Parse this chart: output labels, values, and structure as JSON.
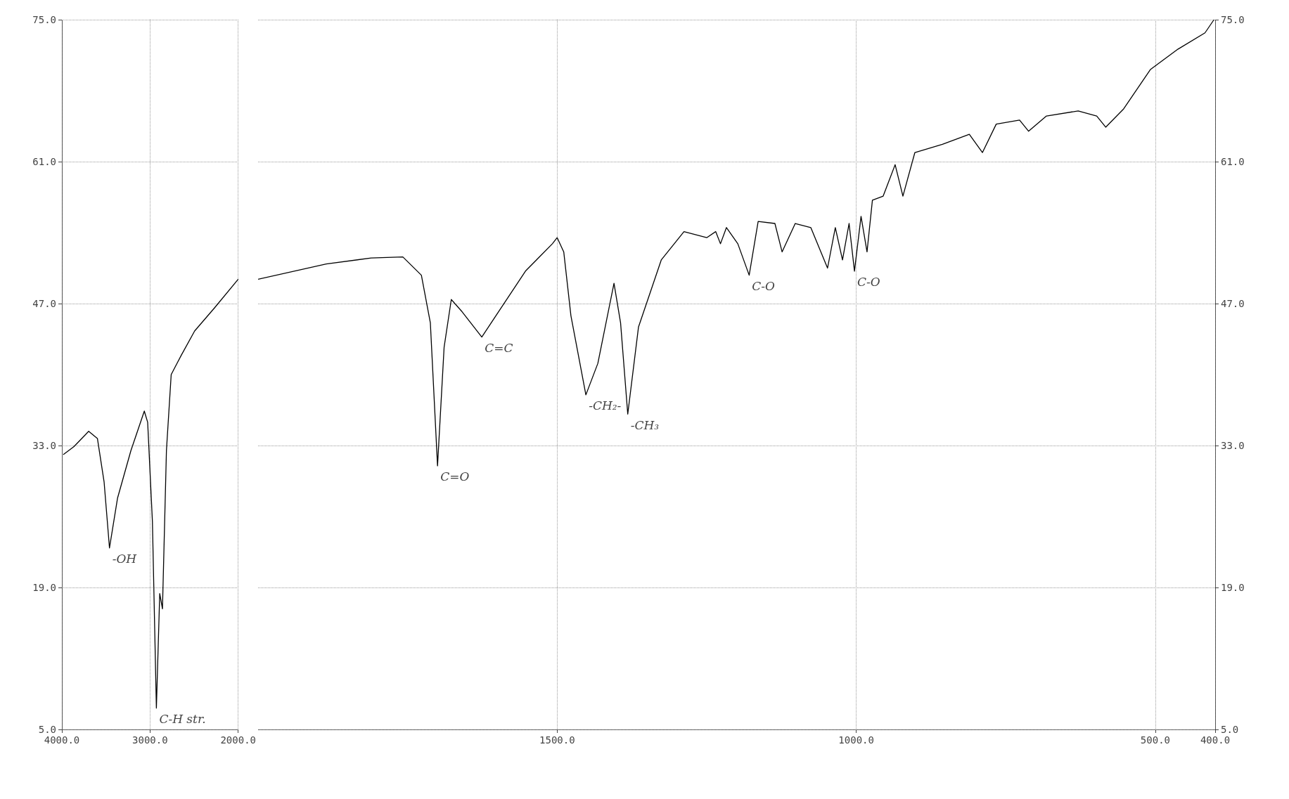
{
  "chart_data": [
    {
      "type": "line",
      "x": [
        3985,
        3863,
        3696,
        3597,
        3521,
        3460,
        3369,
        3217,
        3065,
        3027,
        2973,
        2928,
        2890,
        2859,
        2814,
        2760,
        2646,
        2494,
        2266,
        2000
      ],
      "series": [
        {
          "color": "#000000",
          "values": [
            32.1,
            32.9,
            34.4,
            33.7,
            29.4,
            22.9,
            27.8,
            32.5,
            36.4,
            35.3,
            25.5,
            7.1,
            18.4,
            16.9,
            32.5,
            40.0,
            41.9,
            44.3,
            46.6,
            49.4
          ]
        }
      ],
      "xlim": [
        4000,
        2000
      ],
      "xticks": [
        {
          "value": 4000,
          "label": "4000.0"
        },
        {
          "value": 3000,
          "label": "3000.0"
        },
        {
          "value": 2000,
          "label": "2000.0"
        }
      ],
      "ylim": [
        5,
        75
      ],
      "yticks": [
        {
          "value": 5,
          "label": "5.0"
        },
        {
          "value": 19,
          "label": "19.0"
        },
        {
          "value": 33,
          "label": "33.0"
        },
        {
          "value": 47,
          "label": "47.0"
        },
        {
          "value": 61,
          "label": "61.0"
        },
        {
          "value": 75,
          "label": "75.0"
        }
      ],
      "grid": true,
      "marker": "none",
      "line_style": "solid",
      "annotations": [
        {
          "text": "-OH",
          "x": 3460,
          "y": 22.9
        },
        {
          "text": "C-H str.",
          "x": 2928,
          "y": 7.1
        }
      ]
    },
    {
      "type": "line",
      "x": [
        2000,
        1886,
        1811,
        1758,
        1727,
        1712,
        1700,
        1689,
        1677,
        1659,
        1626,
        1598,
        1553,
        1508,
        1500,
        1489,
        1477,
        1452,
        1432,
        1405,
        1394,
        1382,
        1364,
        1326,
        1288,
        1250,
        1235,
        1227,
        1217,
        1198,
        1179,
        1164,
        1136,
        1124,
        1102,
        1076,
        1048,
        1035,
        1023,
        1012,
        1003,
        992,
        982,
        973,
        955,
        935,
        922,
        902,
        856,
        811,
        789,
        766,
        727,
        712,
        682,
        629,
        598,
        583,
        553,
        508,
        462,
        417,
        402
      ],
      "series": [
        {
          "color": "#000000",
          "values": [
            49.4,
            50.9,
            51.5,
            51.6,
            49.8,
            45.1,
            31.0,
            42.7,
            47.4,
            46.2,
            43.7,
            46.2,
            50.2,
            52.9,
            53.5,
            52.1,
            45.8,
            38.0,
            41.1,
            49.0,
            45.1,
            36.1,
            44.7,
            51.3,
            54.1,
            53.5,
            54.1,
            52.9,
            54.5,
            52.9,
            49.8,
            55.1,
            54.9,
            52.1,
            54.9,
            54.5,
            50.5,
            54.5,
            51.3,
            54.9,
            50.2,
            55.6,
            52.1,
            57.2,
            57.6,
            60.7,
            57.6,
            61.9,
            62.7,
            63.7,
            61.9,
            64.7,
            65.1,
            64.0,
            65.5,
            66.0,
            65.5,
            64.4,
            66.2,
            70.1,
            72.1,
            73.7,
            75.0
          ]
        }
      ],
      "xlim": [
        2000,
        400
      ],
      "xticks": [
        {
          "value": 1500,
          "label": "1500.0"
        },
        {
          "value": 1000,
          "label": "1000.0"
        },
        {
          "value": 500,
          "label": "500.0"
        },
        {
          "value": 400,
          "label": "400.0"
        }
      ],
      "ylim": [
        5,
        75
      ],
      "yticks": [
        {
          "value": 5,
          "label": "5.0"
        },
        {
          "value": 19,
          "label": "19.0"
        },
        {
          "value": 33,
          "label": "33.0"
        },
        {
          "value": 47,
          "label": "47.0"
        },
        {
          "value": 61,
          "label": "61.0"
        },
        {
          "value": 75,
          "label": "75.0"
        }
      ],
      "grid": true,
      "marker": "none",
      "line_style": "solid",
      "annotations": [
        {
          "text": "C=O",
          "x": 1700,
          "y": 31.0
        },
        {
          "text": "C=C",
          "x": 1626,
          "y": 43.7
        },
        {
          "text": "-CH₂-",
          "x": 1452,
          "y": 38.0
        },
        {
          "text": "-CH₃",
          "x": 1382,
          "y": 36.1
        },
        {
          "text": "C-O",
          "x": 1179,
          "y": 49.8
        },
        {
          "text": "C-O",
          "x": 1003,
          "y": 50.2
        }
      ]
    }
  ]
}
